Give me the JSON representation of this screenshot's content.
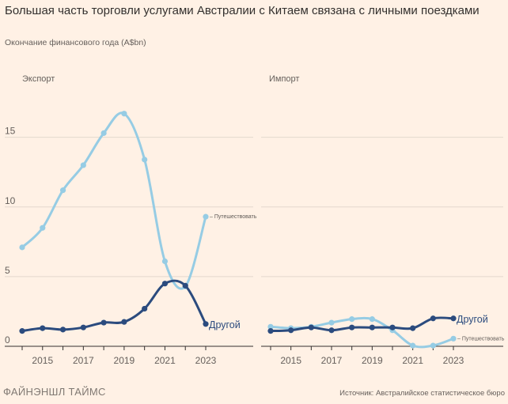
{
  "header": {
    "title": "Большая часть торговли услугами Австралии с Китаем связана с личными поездками",
    "subtitle": "Окончание финансового года (A$bn)"
  },
  "footer": {
    "brand": "ФАЙНЭНШЛ ТАЙМС",
    "source": "Источник: Австралийское статистическое бюро"
  },
  "colors": {
    "background": "#fff1e5",
    "travel": "#96cce4",
    "other": "#2b4b7e"
  },
  "chart_data": [
    {
      "type": "line",
      "title": "Экспорт",
      "x": [
        2014,
        2015,
        2016,
        2017,
        2018,
        2019,
        2020,
        2021,
        2022,
        2023
      ],
      "x_tick_labels": [
        "2015",
        "2017",
        "2019",
        "2021",
        "2023"
      ],
      "y_ticks": [
        0,
        5,
        10,
        15
      ],
      "y_tick_labels": [
        "0",
        "5",
        "10",
        "15"
      ],
      "ylim": [
        0,
        18.5
      ],
      "series": [
        {
          "name": "Путешествовать",
          "label": "– Путешествовать",
          "label_size": "small",
          "values": [
            7.1,
            8.5,
            11.2,
            13.0,
            15.3,
            16.7,
            13.4,
            6.1,
            4.3,
            9.3
          ]
        },
        {
          "name": "Другой",
          "label": "Другой",
          "label_size": "big",
          "values": [
            1.1,
            1.3,
            1.2,
            1.35,
            1.7,
            1.75,
            2.7,
            4.5,
            4.35,
            1.6
          ]
        }
      ]
    },
    {
      "type": "line",
      "title": "Импорт",
      "x": [
        2014,
        2015,
        2016,
        2017,
        2018,
        2019,
        2020,
        2021,
        2022,
        2023
      ],
      "x_tick_labels": [
        "2015",
        "2017",
        "2019",
        "2021",
        "2023"
      ],
      "y_ticks": [
        0,
        5,
        10,
        15
      ],
      "y_tick_labels": [],
      "ylim": [
        0,
        18.5
      ],
      "series": [
        {
          "name": "Путешествовать",
          "label": "– Путешествовать",
          "label_size": "small",
          "values": [
            1.4,
            1.3,
            1.4,
            1.7,
            1.95,
            1.95,
            1.15,
            0.05,
            0.05,
            0.55
          ]
        },
        {
          "name": "Другой",
          "label": "Другой",
          "label_size": "big",
          "values": [
            1.1,
            1.15,
            1.35,
            1.15,
            1.35,
            1.35,
            1.35,
            1.3,
            2.0,
            2.0
          ]
        }
      ]
    }
  ]
}
